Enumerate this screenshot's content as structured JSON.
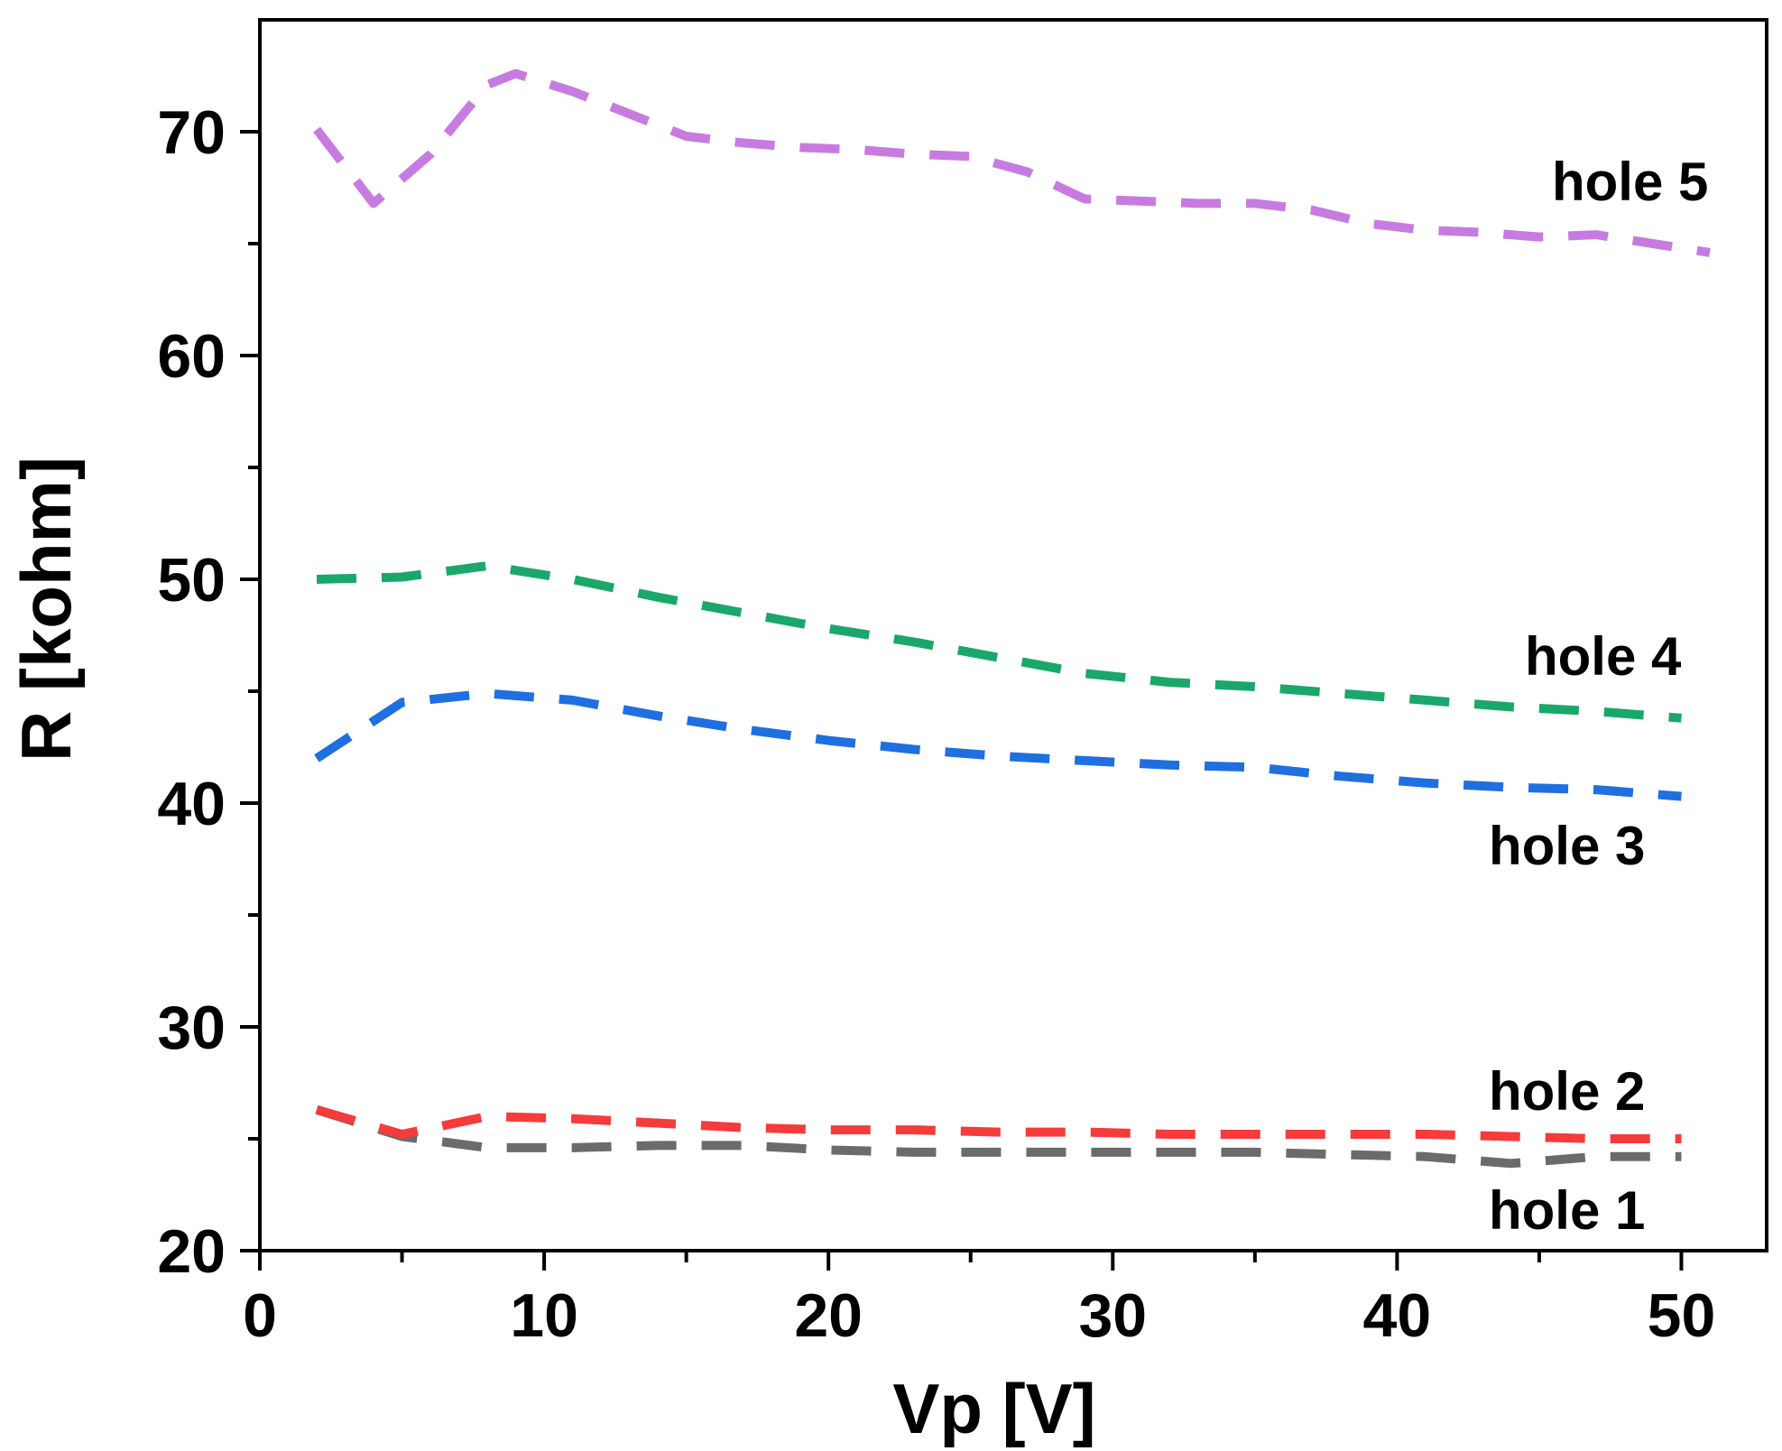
{
  "chart_data": {
    "type": "line",
    "title": "",
    "xlabel": "Vp [V]",
    "ylabel": "R [kohm]",
    "xlim": [
      0,
      53
    ],
    "ylim": [
      20,
      75
    ],
    "xticks": [
      0,
      10,
      20,
      30,
      40,
      50
    ],
    "yticks": [
      20,
      30,
      40,
      50,
      60,
      70
    ],
    "x_minor_step": 5,
    "y_minor_step": 5,
    "grid": false,
    "legend": "none",
    "series": [
      {
        "name": "hole 1",
        "label": "hole 1",
        "color": "#6b6b6b",
        "x": [
          2,
          5,
          8,
          11,
          14,
          17,
          20,
          23,
          26,
          29,
          32,
          35,
          38,
          41,
          44,
          47,
          50
        ],
        "y": [
          26.3,
          25.1,
          24.6,
          24.6,
          24.7,
          24.7,
          24.5,
          24.4,
          24.4,
          24.4,
          24.4,
          24.4,
          24.3,
          24.2,
          23.9,
          24.2,
          24.2
        ]
      },
      {
        "name": "hole 2",
        "label": "hole 2",
        "color": "#f53b3b",
        "x": [
          2,
          5,
          8,
          11,
          14,
          17,
          20,
          23,
          26,
          29,
          32,
          35,
          38,
          41,
          44,
          47,
          50
        ],
        "y": [
          26.3,
          25.2,
          26.0,
          25.9,
          25.7,
          25.5,
          25.4,
          25.4,
          25.3,
          25.3,
          25.2,
          25.2,
          25.2,
          25.2,
          25.1,
          25.0,
          25.0
        ]
      },
      {
        "name": "hole 3",
        "label": "hole 3",
        "color": "#1f6fe0",
        "x": [
          2,
          5,
          8,
          11,
          14,
          17,
          20,
          23,
          26,
          29,
          32,
          35,
          38,
          41,
          44,
          47,
          50
        ],
        "y": [
          42.0,
          44.5,
          44.9,
          44.6,
          43.9,
          43.3,
          42.8,
          42.4,
          42.1,
          41.9,
          41.7,
          41.6,
          41.2,
          40.9,
          40.7,
          40.6,
          40.3
        ]
      },
      {
        "name": "hole 4",
        "label": "hole 4",
        "color": "#1aa86a",
        "x": [
          2,
          5,
          8,
          11,
          14,
          17,
          20,
          23,
          26,
          29,
          32,
          35,
          38,
          41,
          44,
          47,
          50
        ],
        "y": [
          50.0,
          50.1,
          50.6,
          50.0,
          49.2,
          48.5,
          47.8,
          47.2,
          46.5,
          45.8,
          45.4,
          45.2,
          44.9,
          44.6,
          44.3,
          44.1,
          43.8
        ]
      },
      {
        "name": "hole 5",
        "label": "hole 5",
        "color": "#c77be0",
        "x": [
          2,
          4,
          6,
          8,
          9,
          11,
          13,
          15,
          17,
          19,
          21,
          23,
          25,
          27,
          29,
          31,
          33,
          35,
          37,
          39,
          41,
          43,
          45,
          47,
          49,
          51
        ],
        "y": [
          70.1,
          66.8,
          69.0,
          72.1,
          72.6,
          71.8,
          70.8,
          69.8,
          69.5,
          69.3,
          69.2,
          69.0,
          68.9,
          68.2,
          67.0,
          66.9,
          66.8,
          66.8,
          66.5,
          65.9,
          65.6,
          65.5,
          65.3,
          65.4,
          65.0,
          64.6
        ]
      }
    ]
  }
}
